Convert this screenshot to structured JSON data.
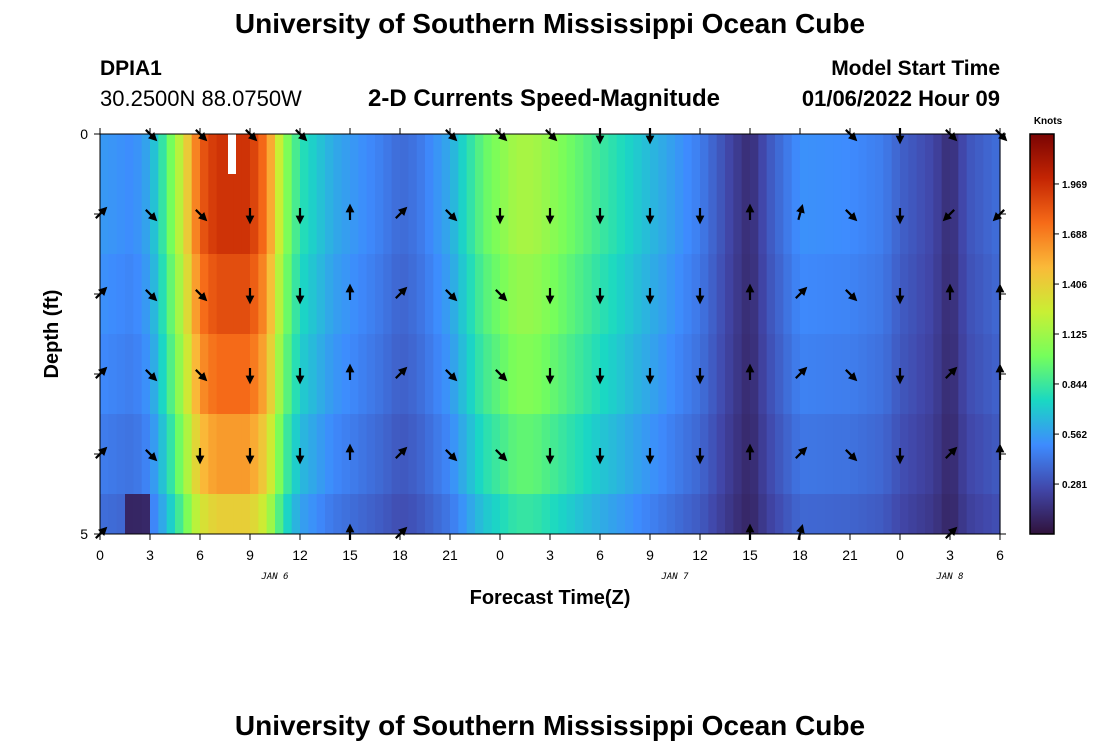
{
  "page": {
    "title": "University of Southern Mississippi Ocean Cube",
    "title_repeat": "University of Southern Mississippi Ocean Cube"
  },
  "station": {
    "id": "DPIA1",
    "coords": "30.2500N  88.0750W"
  },
  "model": {
    "label": "Model Start Time",
    "time": "01/06/2022 Hour 09"
  },
  "chart_data": {
    "type": "heatmap",
    "title": "2-D Currents Speed-Magnitude",
    "xlabel": "Forecast Time(Z)",
    "ylabel": "Depth (ft)",
    "x_tick_labels": [
      "0",
      "3",
      "6",
      "9",
      "12",
      "15",
      "18",
      "21",
      "0",
      "3",
      "6",
      "9",
      "12",
      "15",
      "18",
      "21",
      "0",
      "3",
      "6"
    ],
    "date_labels": [
      {
        "text": "JAN 6",
        "at_index": 3.5
      },
      {
        "text": "JAN 7",
        "at_index": 11.5
      },
      {
        "text": "JAN 8",
        "at_index": 17
      }
    ],
    "x_hours": [
      0,
      54
    ],
    "y_tick_labels": [
      "0",
      "5"
    ],
    "ylim": [
      0,
      5
    ],
    "depth_levels_ft": [
      0,
      1,
      2,
      3,
      4,
      5
    ],
    "colorbar": {
      "title": "Knots",
      "ticks": [
        "0.281",
        "0.562",
        "0.844",
        "1.125",
        "1.406",
        "1.688",
        "1.969"
      ],
      "range": [
        0,
        2.25
      ],
      "colors": [
        "#30123b",
        "#4146a8",
        "#3e8bfe",
        "#1ad8c3",
        "#75fe5c",
        "#c9ef34",
        "#faba39",
        "#f66b18",
        "#c42503",
        "#7a0403"
      ]
    },
    "speed_at_hour_knots": [
      [
        0,
        0.55
      ],
      [
        2,
        0.5
      ],
      [
        3,
        0.6
      ],
      [
        4,
        0.9
      ],
      [
        5,
        1.3
      ],
      [
        6,
        1.8
      ],
      [
        7,
        1.95
      ],
      [
        9,
        1.95
      ],
      [
        10,
        1.7
      ],
      [
        11,
        1.1
      ],
      [
        12,
        0.8
      ],
      [
        14,
        0.6
      ],
      [
        17,
        0.45
      ],
      [
        18,
        0.38
      ],
      [
        19,
        0.42
      ],
      [
        21,
        0.6
      ],
      [
        23,
        0.95
      ],
      [
        25,
        1.15
      ],
      [
        26,
        1.15
      ],
      [
        28,
        1.0
      ],
      [
        30,
        0.85
      ],
      [
        33,
        0.65
      ],
      [
        36,
        0.45
      ],
      [
        38,
        0.22
      ],
      [
        39,
        0.12
      ],
      [
        40,
        0.3
      ],
      [
        42,
        0.52
      ],
      [
        45,
        0.5
      ],
      [
        47,
        0.45
      ],
      [
        48,
        0.35
      ],
      [
        50,
        0.25
      ],
      [
        51,
        0.12
      ],
      [
        52,
        0.3
      ],
      [
        54,
        0.4
      ]
    ],
    "depth_speed_factor": [
      1.0,
      1.0,
      0.95,
      0.9,
      0.82,
      0.72
    ],
    "arrows": {
      "hours": [
        0,
        3,
        6,
        9,
        12,
        15,
        18,
        21,
        24,
        27,
        30,
        33,
        36,
        39,
        42,
        45,
        48,
        51,
        54
      ],
      "rows": [
        [
          null,
          135,
          135,
          135,
          135,
          null,
          null,
          135,
          135,
          135,
          180,
          180,
          null,
          null,
          null,
          135,
          180,
          135,
          135
        ],
        [
          45,
          135,
          135,
          180,
          180,
          0,
          45,
          135,
          180,
          180,
          180,
          180,
          180,
          0,
          15,
          135,
          180,
          225,
          225
        ],
        [
          45,
          135,
          135,
          180,
          180,
          0,
          45,
          135,
          135,
          180,
          180,
          180,
          180,
          0,
          45,
          135,
          180,
          0,
          0
        ],
        [
          45,
          135,
          135,
          180,
          180,
          0,
          45,
          135,
          135,
          180,
          180,
          180,
          180,
          0,
          45,
          135,
          180,
          45,
          0
        ],
        [
          45,
          135,
          180,
          180,
          180,
          0,
          45,
          135,
          135,
          180,
          180,
          180,
          180,
          0,
          45,
          135,
          180,
          45,
          0
        ],
        [
          45,
          null,
          null,
          null,
          null,
          0,
          45,
          null,
          null,
          null,
          null,
          null,
          null,
          0,
          15,
          null,
          null,
          45,
          null
        ]
      ]
    }
  }
}
